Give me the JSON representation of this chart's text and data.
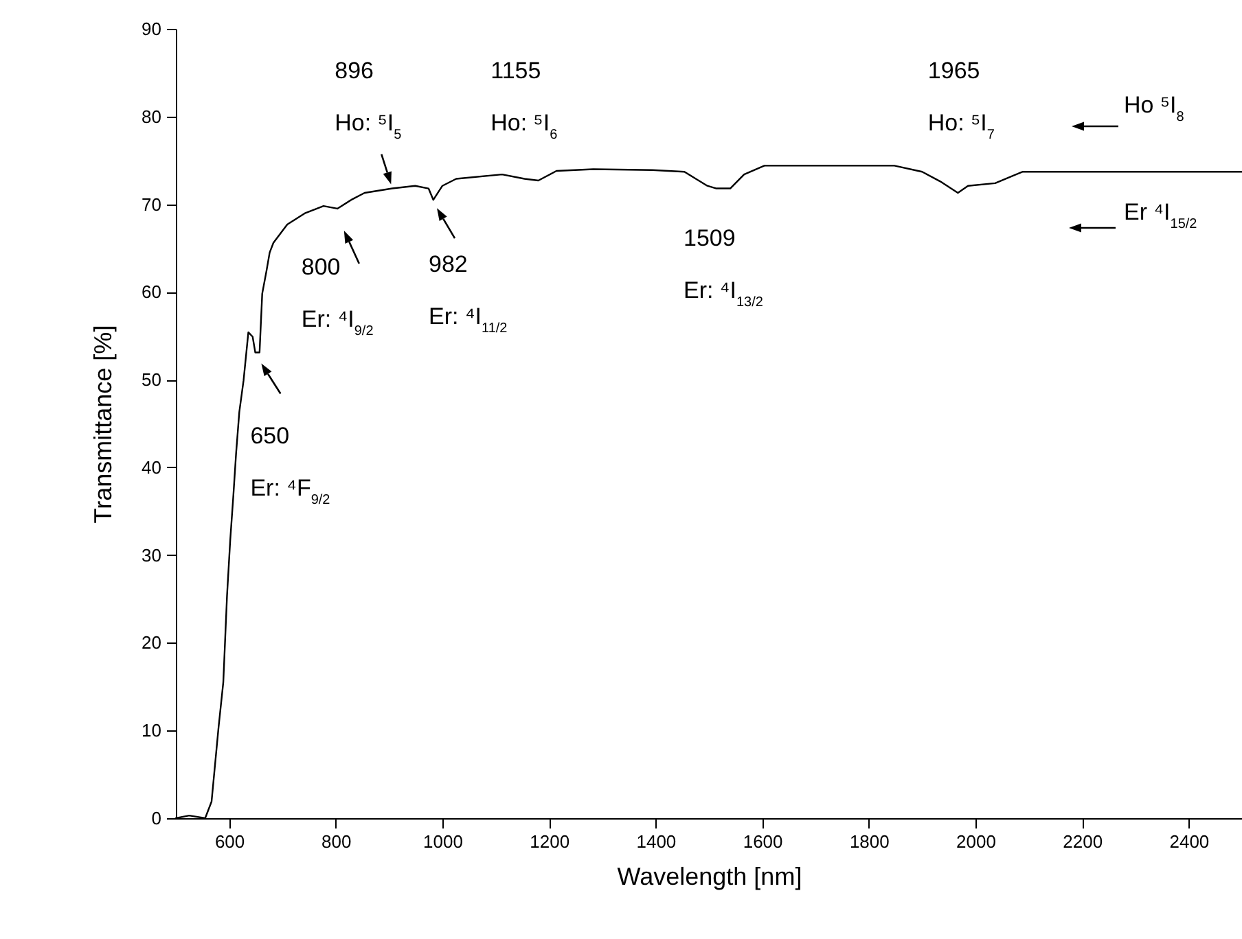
{
  "chart_data": {
    "type": "line",
    "xlabel": "Wavelength [nm]",
    "ylabel": "Transmittance [%]",
    "x": [
      500,
      525,
      555,
      567,
      580,
      589,
      596,
      602,
      608,
      613,
      619,
      627,
      636,
      644,
      649,
      657,
      662,
      670,
      676,
      683,
      709,
      743,
      777,
      803,
      829,
      854,
      906,
      949,
      974,
      983,
      1000,
      1026,
      1112,
      1154,
      1180,
      1214,
      1283,
      1394,
      1454,
      1497,
      1514,
      1540,
      1566,
      1604,
      1848,
      1900,
      1934,
      1967,
      1986,
      2037,
      2088,
      2500
    ],
    "series": [
      {
        "color": "#000000",
        "values": [
          0,
          0.3,
          0,
          1.9,
          10.3,
          15.5,
          25.4,
          31.7,
          36.9,
          41.6,
          46.3,
          49.9,
          55.4,
          54.9,
          53.1,
          53.1,
          59.8,
          62.4,
          64.5,
          65.6,
          67.7,
          69.0,
          69.8,
          69.5,
          70.5,
          71.3,
          71.8,
          72.1,
          71.8,
          70.5,
          72.1,
          72.9,
          73.4,
          72.9,
          72.7,
          73.8,
          74.0,
          73.9,
          73.7,
          72.1,
          71.8,
          71.8,
          73.4,
          74.4,
          74.4,
          73.7,
          72.6,
          71.3,
          72.1,
          72.4,
          73.7,
          73.7
        ]
      }
    ],
    "xlim": [
      500,
      2500
    ],
    "xticks": [
      600,
      800,
      1000,
      1200,
      1400,
      1600,
      1800,
      2000,
      2200,
      2400
    ],
    "ylim": [
      0,
      90
    ],
    "yticks": [
      0,
      10,
      20,
      30,
      40,
      50,
      60,
      70,
      80,
      90
    ],
    "grid": false,
    "line_style": "solid",
    "marker": "none",
    "annotations": [
      {
        "text": "650\nEr: ⁴F$_{9/2}$",
        "x": 650,
        "y": 53.1
      },
      {
        "text": "800\nEr: ⁴I$_{9/2}$",
        "x": 800,
        "y": 69.5
      },
      {
        "text": "896\nHo: ⁵I$_{5}$",
        "x": 896,
        "y": 71.8
      },
      {
        "text": "982\nEr: ⁴I$_{11/2}$",
        "x": 982,
        "y": 70.5
      },
      {
        "text": "1155\nHo: ⁵I$_{6}$",
        "x": 1155,
        "y": 72.9
      },
      {
        "text": "1509\nEr: ⁴I$_{13/2}$",
        "x": 1509,
        "y": 71.8
      },
      {
        "text": "1965\nHo: ⁵I$_{7}$",
        "x": 1965,
        "y": 71.3
      },
      "Ho ⁵I$_{8}$",
      "Er ⁴I$_{15/2}$"
    ]
  }
}
